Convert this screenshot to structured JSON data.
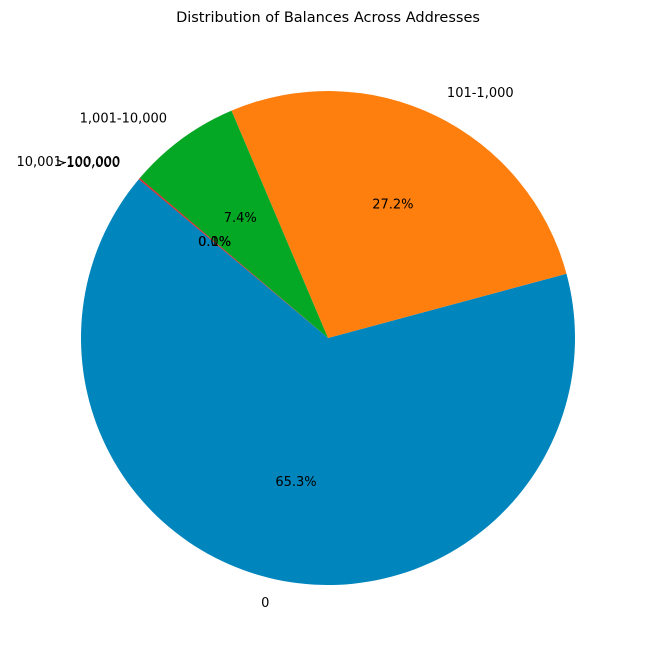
{
  "chart_data": {
    "type": "pie",
    "title": "Distribution of Balances Across Addresses",
    "categories": [
      "0",
      "101-1,000",
      "1,001-10,000",
      "10,001-100,000",
      ">100,000"
    ],
    "values": [
      65.3,
      27.2,
      7.4,
      0.1,
      0.0
    ],
    "percent_labels": [
      "65.3%",
      "27.2%",
      "7.4%",
      "0.1%",
      "0.0%"
    ],
    "colors": [
      "#0085BD",
      "#FF7F0E",
      "#05A825",
      "#D62728",
      "#1F3A93"
    ],
    "start_angle_deg": 140,
    "direction": "counterclockwise",
    "legend": "none"
  }
}
